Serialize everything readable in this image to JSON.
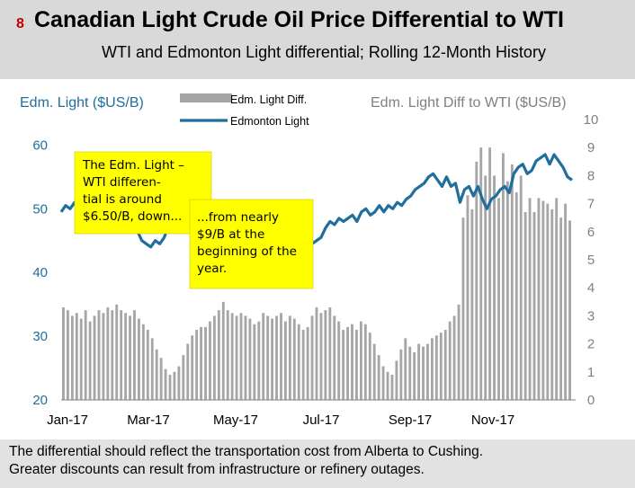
{
  "header": {
    "slide_number": "8",
    "title": "Canadian Light Crude Oil Price Differential to WTI",
    "subtitle": "WTI and Edmonton Light differential; Rolling 12-Month History"
  },
  "footer": {
    "line1": "The differential should reflect the transportation cost from Alberta to Cushing.",
    "line2": "Greater discounts can result from infrastructure or refinery outages."
  },
  "colors": {
    "bars": "#a6a6a6",
    "line": "#1f6e9c",
    "left_axis_text": "#1f6e9c",
    "right_axis_text": "#808080",
    "note_fill": "#ffff00"
  },
  "annotations": [
    {
      "name": "note-current",
      "lines": [
        "The Edm. Light –",
        "WTI differen-",
        "tial is around",
        "$6.50/B, down..."
      ]
    },
    {
      "name": "note-start",
      "lines": [
        "...from nearly",
        "$9/B at the",
        "beginning of the",
        "year."
      ]
    }
  ],
  "chart_data": {
    "type": "bar+line",
    "x_tick_labels": [
      "Jan-17",
      "Mar-17",
      "May-17",
      "Jul-17",
      "Sep-17",
      "Nov-17"
    ],
    "left_axis": {
      "label": "Edm. Light ($US/B)",
      "ticks": [
        "20",
        "30",
        "40",
        "50",
        "60"
      ],
      "range": [
        20,
        64
      ]
    },
    "right_axis": {
      "label": "Edm. Light Diff to WTI ($US/B)",
      "ticks": [
        "0",
        "1",
        "2",
        "3",
        "4",
        "5",
        "6",
        "7",
        "8",
        "9",
        "10"
      ],
      "range": [
        0,
        10
      ]
    },
    "grid": false,
    "legend": {
      "position": "top-center",
      "entries": [
        "Edm. Light Diff.",
        "Edmonton Light"
      ]
    },
    "series": [
      {
        "name": "Edm. Light Diff.",
        "type": "bar",
        "axis": "right",
        "values": [
          3.3,
          3.2,
          3.0,
          3.1,
          2.9,
          3.2,
          2.8,
          3.0,
          3.2,
          3.1,
          3.3,
          3.2,
          3.4,
          3.2,
          3.1,
          3.0,
          3.2,
          2.9,
          2.7,
          2.5,
          2.2,
          1.8,
          1.5,
          1.1,
          0.9,
          1.0,
          1.2,
          1.6,
          2.0,
          2.3,
          2.5,
          2.6,
          2.6,
          2.8,
          3.0,
          3.2,
          3.5,
          3.2,
          3.1,
          3.0,
          3.1,
          3.0,
          2.9,
          2.7,
          2.8,
          3.1,
          3.0,
          2.9,
          3.0,
          3.1,
          2.8,
          3.0,
          2.9,
          2.7,
          2.5,
          2.6,
          3.0,
          3.3,
          3.1,
          3.2,
          3.3,
          3.0,
          2.8,
          2.5,
          2.6,
          2.7,
          2.5,
          2.8,
          2.7,
          2.4,
          2.0,
          1.6,
          1.2,
          1.0,
          0.9,
          1.4,
          1.8,
          2.2,
          1.9,
          1.7,
          2.0,
          1.9,
          2.0,
          2.2,
          2.3,
          2.4,
          2.5,
          2.8,
          3.0,
          3.4,
          6.5,
          7.3,
          6.8,
          8.5,
          9.0,
          8.0,
          9.0,
          8.0,
          7.2,
          8.8,
          7.8,
          8.4,
          7.4,
          8.0,
          6.7,
          7.2,
          6.7,
          7.2,
          7.1,
          7.0,
          6.8,
          7.2,
          6.5,
          7.0,
          6.4
        ]
      },
      {
        "name": "Edmonton Light",
        "type": "line",
        "axis": "left",
        "values": [
          49.5,
          50.5,
          50.0,
          51.0,
          49.0,
          50.5,
          48.5,
          48.0,
          47.0,
          48.5,
          47.5,
          49.0,
          48.0,
          47.0,
          47.5,
          47.0,
          48.0,
          46.5,
          45.0,
          44.5,
          44.0,
          45.0,
          44.5,
          45.5,
          47.5,
          48.5,
          47.0,
          49.0,
          48.5,
          49.5,
          48.5,
          49.5,
          48.0,
          46.5,
          45.0,
          44.5,
          44.0,
          45.5,
          46.5,
          47.0,
          46.0,
          47.5,
          46.5,
          45.5,
          45.0,
          45.5,
          46.0,
          46.5,
          45.5,
          45.0,
          44.5,
          45.0,
          44.0,
          43.5,
          44.5,
          45.0,
          44.5,
          45.0,
          45.5,
          47.0,
          48.0,
          47.5,
          48.5,
          48.0,
          48.5,
          49.0,
          48.0,
          49.5,
          50.0,
          49.0,
          49.5,
          50.5,
          49.5,
          50.5,
          50.0,
          51.0,
          50.5,
          51.5,
          52.0,
          53.0,
          53.5,
          54.0,
          55.0,
          55.5,
          54.5,
          53.5,
          55.0,
          53.5,
          54.0,
          51.0,
          53.0,
          53.5,
          52.0,
          53.5,
          51.5,
          50.0,
          51.5,
          52.0,
          53.0,
          53.5,
          52.5,
          55.5,
          56.5,
          57.0,
          55.5,
          56.0,
          57.5,
          58.0,
          58.5,
          57.0,
          58.5,
          57.5,
          56.5,
          55.0,
          54.5
        ]
      }
    ]
  }
}
